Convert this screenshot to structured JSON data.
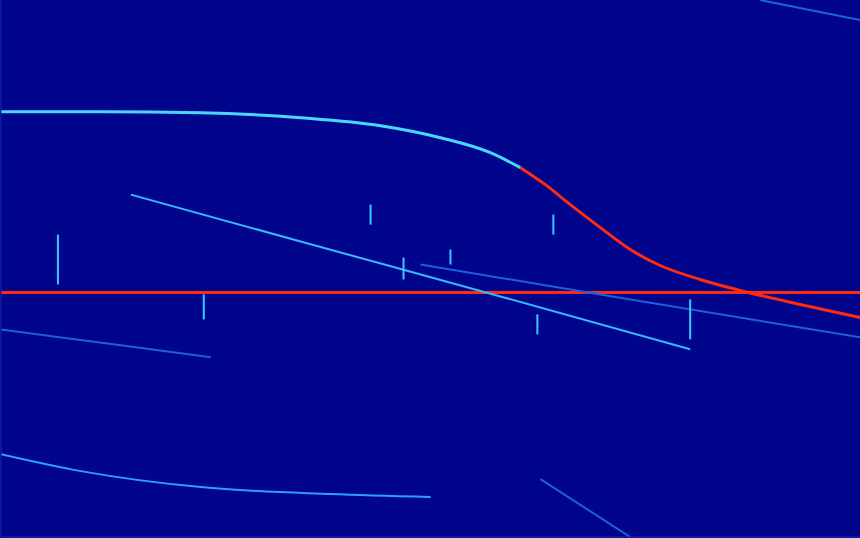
{
  "chart_data": {
    "type": "line",
    "xlim": [
      0,
      860
    ],
    "ylim": [
      0,
      538
    ],
    "grid": false,
    "tick_labels": false,
    "series": [
      {
        "color": "#48d8ff",
        "x": [
          0,
          100,
          200,
          300,
          380,
          440,
          490,
          520
        ],
        "values": [
          426,
          426,
          425,
          420,
          412,
          400,
          385,
          370
        ]
      },
      {
        "color": "#ff2a10",
        "x": [
          520,
          545,
          570,
          600,
          630,
          660,
          700,
          740,
          800,
          860
        ],
        "values": [
          370,
          353,
          333,
          310,
          288,
          272,
          258,
          247,
          233,
          220
        ]
      },
      {
        "color": "#ff2a10",
        "x": [
          0,
          860
        ],
        "values": [
          245,
          245
        ]
      },
      {
        "color": "#38b8ff",
        "x": [
          130,
          300,
          500,
          690
        ],
        "values": [
          343,
          296,
          241,
          188
        ]
      },
      {
        "color": "#1c60e0",
        "x": [
          420,
          600,
          860
        ],
        "values": [
          273,
          243,
          200
        ]
      },
      {
        "color": "#1c60e0",
        "x": [
          0,
          120,
          210
        ],
        "values": [
          208,
          192,
          180
        ]
      },
      {
        "color": "#2aa0ff",
        "x": [
          0,
          80,
          200,
          330,
          430
        ],
        "values": [
          83,
          66,
          50,
          43,
          40
        ]
      },
      {
        "color": "#1c60e0",
        "x": [
          540,
          630
        ],
        "values": [
          58,
          0
        ]
      },
      {
        "color": "#1c60e0",
        "x": [
          760,
          860
        ],
        "values": [
          538,
          518
        ]
      },
      {
        "color": "#3cc8ff",
        "x": [
          57,
          57
        ],
        "values": [
          303,
          253
        ]
      },
      {
        "color": "#3cc8ff",
        "x": [
          370,
          370
        ],
        "values": [
          333,
          313
        ]
      },
      {
        "color": "#3cc8ff",
        "x": [
          203,
          203
        ],
        "values": [
          243,
          218
        ]
      },
      {
        "color": "#3cc8ff",
        "x": [
          450,
          450
        ],
        "values": [
          288,
          273
        ]
      },
      {
        "color": "#3cc8ff",
        "x": [
          553,
          553
        ],
        "values": [
          323,
          303
        ]
      },
      {
        "color": "#3cc8ff",
        "x": [
          690,
          690
        ],
        "values": [
          238,
          198
        ]
      },
      {
        "color": "#3cc8ff",
        "x": [
          537,
          537
        ],
        "values": [
          223,
          203
        ]
      },
      {
        "color": "#3cc8ff",
        "x": [
          403,
          403
        ],
        "values": [
          280,
          258
        ]
      }
    ]
  }
}
